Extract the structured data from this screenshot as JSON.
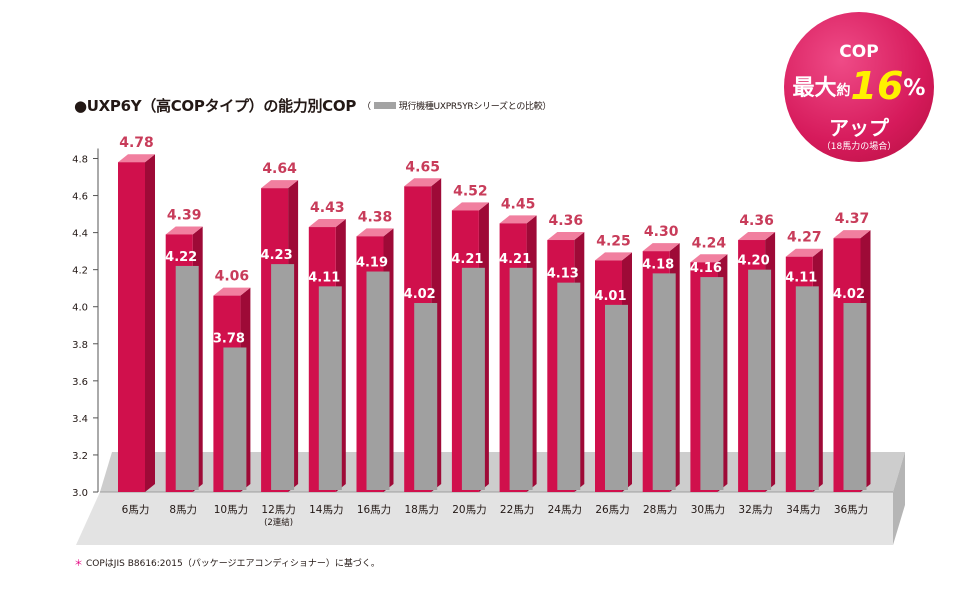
{
  "header": {
    "title": "●UXP6Y（高COPタイプ）の能力別COP",
    "legend_open": "（",
    "legend_label": "現行機種UXPR5YRシリーズとの比較）"
  },
  "badge": {
    "line1": "COP",
    "line2_pre": "最大",
    "line2_small": "約",
    "line2_big": "16",
    "line2_pct": "%",
    "line3": "アップ",
    "line4": "（18馬力の場合）"
  },
  "footnote": {
    "mark": "＊",
    "text": "COPはJIS B8616:2015（パッケージエアコンディショナー）に基づく。"
  },
  "chart_data": {
    "type": "bar",
    "categories": [
      "6馬力",
      "8馬力",
      "10馬力",
      "12馬力",
      "14馬力",
      "16馬力",
      "18馬力",
      "20馬力",
      "22馬力",
      "24馬力",
      "26馬力",
      "28馬力",
      "30馬力",
      "32馬力",
      "34馬力",
      "36馬力"
    ],
    "category_notes": [
      "",
      "",
      "",
      "(2連結)",
      "",
      "",
      "",
      "",
      "",
      "",
      "",
      "",
      "",
      "",
      "",
      ""
    ],
    "series": [
      {
        "name": "UXP6Y",
        "color": "#d0104c",
        "values": [
          4.78,
          4.39,
          4.06,
          4.64,
          4.43,
          4.38,
          4.65,
          4.52,
          4.45,
          4.36,
          4.25,
          4.3,
          4.24,
          4.36,
          4.27,
          4.37
        ],
        "labels": [
          "4.78",
          "4.39",
          "4.06",
          "4.64",
          "4.43",
          "4.38",
          "4.65",
          "4.52",
          "4.45",
          "4.36",
          "4.25",
          "4.30",
          "4.24",
          "4.36",
          "4.27",
          "4.37"
        ]
      },
      {
        "name": "UXPR5YR",
        "color": "#a0a0a0",
        "values": [
          null,
          4.22,
          3.78,
          4.23,
          4.11,
          4.19,
          4.02,
          4.21,
          4.21,
          4.13,
          4.01,
          4.18,
          4.16,
          4.2,
          4.11,
          4.02
        ],
        "labels": [
          "",
          "4.22",
          "3.78",
          "4.23",
          "4.11",
          "4.19",
          "4.02",
          "4.21",
          "4.21",
          "4.13",
          "4.01",
          "4.18",
          "4.16",
          "4.20",
          "4.11",
          "4.02"
        ]
      }
    ],
    "y_ticks": [
      "3.0",
      "3.2",
      "3.4",
      "3.6",
      "3.8",
      "4.0",
      "4.2",
      "4.4",
      "4.6",
      "4.8"
    ],
    "ylim": [
      3.0,
      4.9
    ],
    "grid": false,
    "label_color": "#c83c5a"
  }
}
